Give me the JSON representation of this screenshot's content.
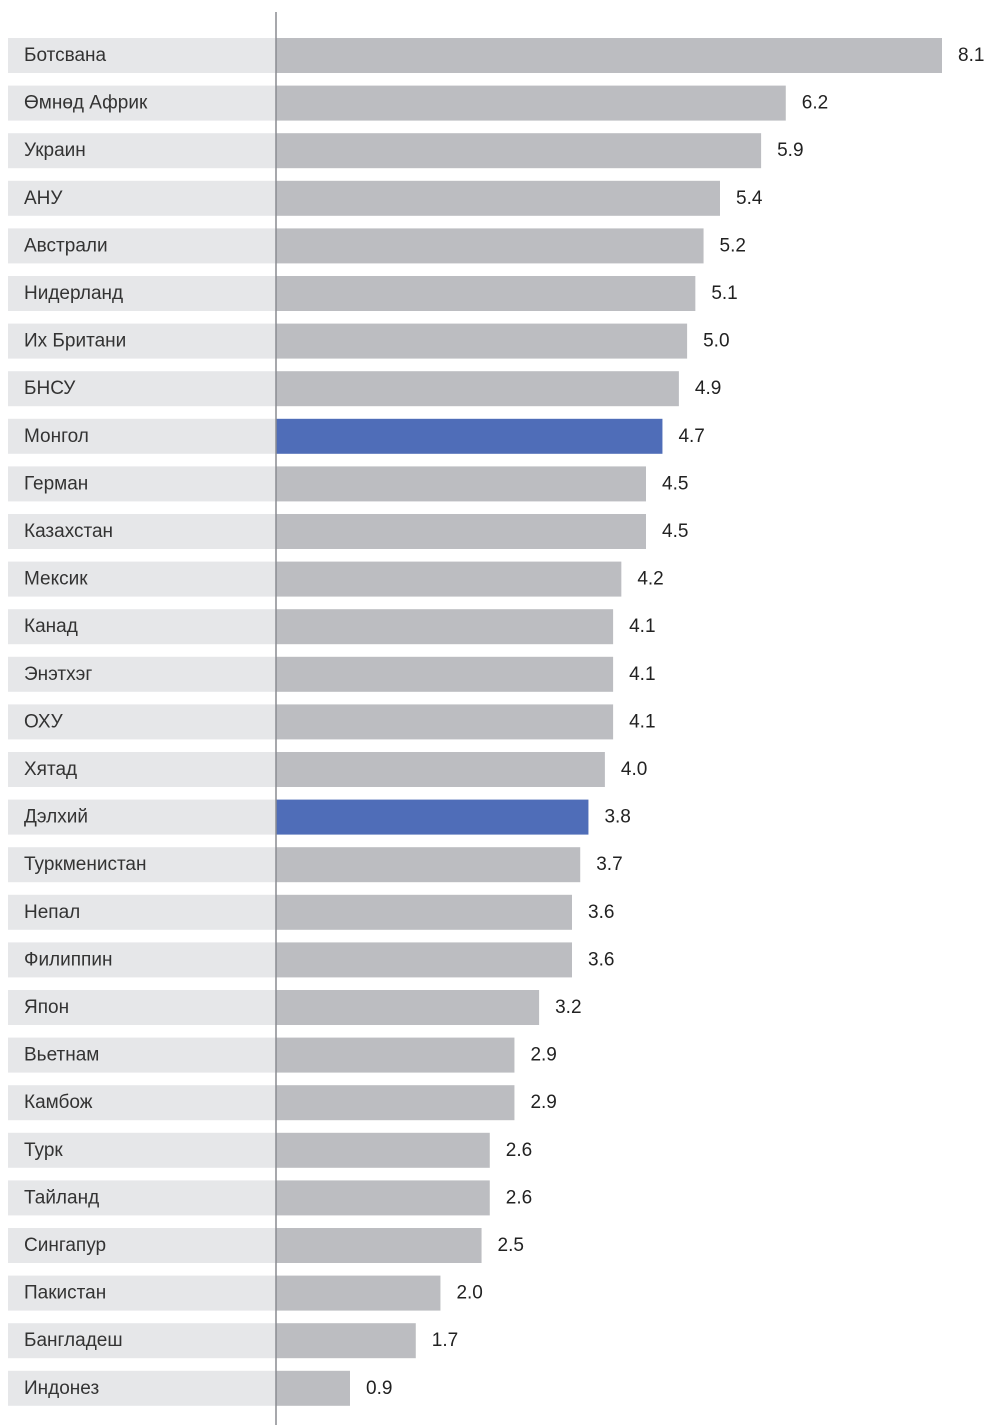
{
  "chart_data": {
    "type": "bar",
    "orientation": "horizontal",
    "categories": [
      "Ботсвана",
      "Өмнөд Африк",
      "Украин",
      "АНУ",
      "Австрали",
      "Нидерланд",
      "Их Британи",
      "БНСУ",
      "Монгол",
      "Герман",
      "Казахстан",
      "Мексик",
      "Канад",
      "Энэтхэг",
      "ОХУ",
      "Хятад",
      "Дэлхий",
      "Туркменистан",
      "Непал",
      "Филиппин",
      "Япон",
      "Вьетнам",
      "Камбож",
      "Турк",
      "Тайланд",
      "Сингапур",
      "Пакистан",
      "Бангладеш",
      "Индонез"
    ],
    "values": [
      8.1,
      6.2,
      5.9,
      5.4,
      5.2,
      5.1,
      5.0,
      4.9,
      4.7,
      4.5,
      4.5,
      4.2,
      4.1,
      4.1,
      4.1,
      4.0,
      3.8,
      3.7,
      3.6,
      3.6,
      3.2,
      2.9,
      2.9,
      2.6,
      2.6,
      2.5,
      2.0,
      1.7,
      0.9
    ],
    "value_labels": [
      "8.1",
      "6.2",
      "5.9",
      "5.4",
      "5.2",
      "5.1",
      "5.0",
      "4.9",
      "4.7",
      "4.5",
      "4.5",
      "4.2",
      "4.1",
      "4.1",
      "4.1",
      "4.0",
      "3.8",
      "3.7",
      "3.6",
      "3.6",
      "3.2",
      "2.9",
      "2.9",
      "2.6",
      "2.6",
      "2.5",
      "2.0",
      "1.7",
      "0.9"
    ],
    "highlighted": [
      "Монгол",
      "Дэлхий"
    ],
    "xlim": [
      0,
      8.1
    ],
    "grid": false,
    "title": "",
    "xlabel": "",
    "ylabel": "",
    "colors": {
      "bar": "#bcbdc1",
      "highlight": "#4f6db8",
      "label_band": "#e6e7e9",
      "axis_line": "#8a8c91"
    }
  }
}
